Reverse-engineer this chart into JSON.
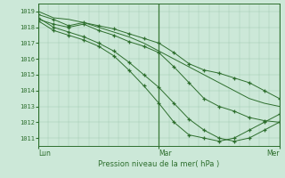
{
  "background_color": "#cce8d8",
  "grid_color": "#a0c8b0",
  "line_color": "#2d6e2d",
  "marker_color": "#2d6e2d",
  "title": "Pression niveau de la mer( hPa )",
  "ylim": [
    1010.5,
    1019.5
  ],
  "yticks": [
    1011,
    1012,
    1013,
    1014,
    1015,
    1016,
    1017,
    1018,
    1019
  ],
  "xlim": [
    0,
    48
  ],
  "xtick_positions": [
    0,
    24,
    48
  ],
  "xtick_labels": [
    "Lun",
    "Mar",
    "Mer"
  ],
  "series": [
    {
      "x": [
        0,
        3,
        6,
        9,
        12,
        15,
        18,
        21,
        24,
        27,
        30,
        33,
        36,
        39,
        42,
        45,
        48
      ],
      "y": [
        1019.0,
        1018.6,
        1018.5,
        1018.3,
        1018.0,
        1017.7,
        1017.4,
        1017.0,
        1016.5,
        1016.0,
        1015.5,
        1015.0,
        1014.5,
        1014.0,
        1013.5,
        1013.2,
        1013.0
      ],
      "has_markers": false
    },
    {
      "x": [
        0,
        3,
        6,
        9,
        12,
        15,
        18,
        21,
        24,
        27,
        30,
        33,
        36,
        39,
        42,
        45,
        48
      ],
      "y": [
        1018.8,
        1018.5,
        1018.1,
        1018.3,
        1018.1,
        1017.9,
        1017.6,
        1017.3,
        1017.0,
        1016.4,
        1015.7,
        1015.3,
        1015.1,
        1014.8,
        1014.5,
        1014.0,
        1013.5
      ],
      "has_markers": true
    },
    {
      "x": [
        0,
        3,
        6,
        9,
        12,
        15,
        18,
        21,
        24,
        27,
        30,
        33,
        36,
        39,
        42,
        45,
        48
      ],
      "y": [
        1018.5,
        1018.2,
        1018.0,
        1018.2,
        1017.8,
        1017.5,
        1017.1,
        1016.8,
        1016.4,
        1015.5,
        1014.5,
        1013.5,
        1013.0,
        1012.7,
        1012.3,
        1012.1,
        1012.0
      ],
      "has_markers": true
    },
    {
      "x": [
        0,
        3,
        6,
        9,
        12,
        15,
        18,
        21,
        24,
        27,
        30,
        33,
        36,
        39,
        42,
        45,
        48
      ],
      "y": [
        1018.6,
        1018.0,
        1017.7,
        1017.4,
        1017.0,
        1016.5,
        1015.8,
        1015.0,
        1014.2,
        1013.2,
        1012.2,
        1011.5,
        1011.0,
        1010.8,
        1011.0,
        1011.5,
        1012.0
      ],
      "has_markers": true
    },
    {
      "x": [
        0,
        3,
        6,
        9,
        12,
        15,
        18,
        21,
        24,
        27,
        30,
        33,
        36,
        39,
        42,
        45,
        48
      ],
      "y": [
        1018.4,
        1017.8,
        1017.5,
        1017.2,
        1016.8,
        1016.2,
        1015.3,
        1014.3,
        1013.2,
        1012.0,
        1011.2,
        1011.0,
        1010.8,
        1011.0,
        1011.5,
        1012.0,
        1012.5
      ],
      "has_markers": true
    }
  ]
}
